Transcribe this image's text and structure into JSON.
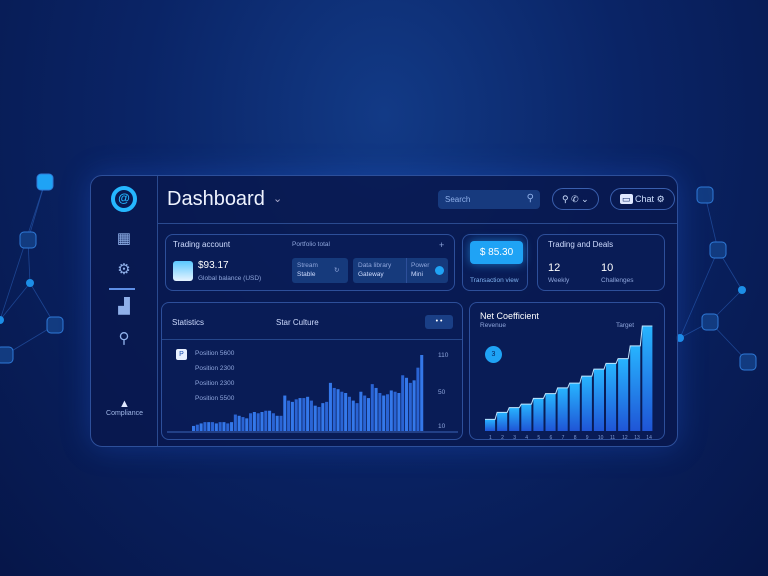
{
  "header": {
    "title": "Dashboard",
    "search_placeholder": "Search",
    "actions_label": "Call",
    "profile_label": "Chat"
  },
  "sidebar": {
    "items": [
      "logo",
      "calendar",
      "settings",
      "analytics",
      "search"
    ],
    "bottom_label": "Compliance"
  },
  "card_balance": {
    "title": "Trading account",
    "subtitle": "Portfolio total",
    "value": "$93.17",
    "caption": "Global balance (USD)",
    "tiles": [
      {
        "label": "Stream",
        "value": "Stable"
      },
      {
        "label": "Data library",
        "value": "Gateway"
      },
      {
        "label": "Power",
        "value": "Mini"
      }
    ]
  },
  "card_price": {
    "button": "$ 85.30",
    "caption": "Transaction view"
  },
  "card_stats": {
    "title": "Trading and Deals",
    "stats": [
      {
        "value": "12",
        "label": "Weekly"
      },
      {
        "value": "10",
        "label": "Challenges"
      }
    ]
  },
  "colors": {
    "accent": "#1fa3f5",
    "bar": "#2e6fe0",
    "bg": "#0a2466"
  },
  "chart_data": [
    {
      "type": "bar",
      "title": "Statistics",
      "subtitle": "Star Culture",
      "legend": [
        "Position 5600",
        "Position 2300",
        "Position 2300",
        "Position 5500"
      ],
      "yticks": [
        "110",
        "50",
        "10"
      ],
      "values": [
        4,
        5,
        6,
        7,
        7,
        7,
        6,
        7,
        7,
        6,
        7,
        13,
        12,
        11,
        10,
        14,
        15,
        14,
        15,
        16,
        16,
        14,
        12,
        12,
        28,
        24,
        23,
        25,
        26,
        26,
        27,
        24,
        20,
        19,
        22,
        23,
        38,
        34,
        33,
        31,
        30,
        27,
        24,
        22,
        31,
        28,
        26,
        37,
        34,
        30,
        28,
        29,
        32,
        31,
        30,
        44,
        42,
        38,
        40,
        50,
        60
      ]
    },
    {
      "type": "bar",
      "title": "Net Coefficient",
      "subtitle": "Revenue",
      "badge": "3",
      "annotation": "Target",
      "values": [
        10,
        16,
        20,
        23,
        28,
        32,
        37,
        41,
        47,
        53,
        58,
        62,
        73,
        90
      ]
    }
  ]
}
